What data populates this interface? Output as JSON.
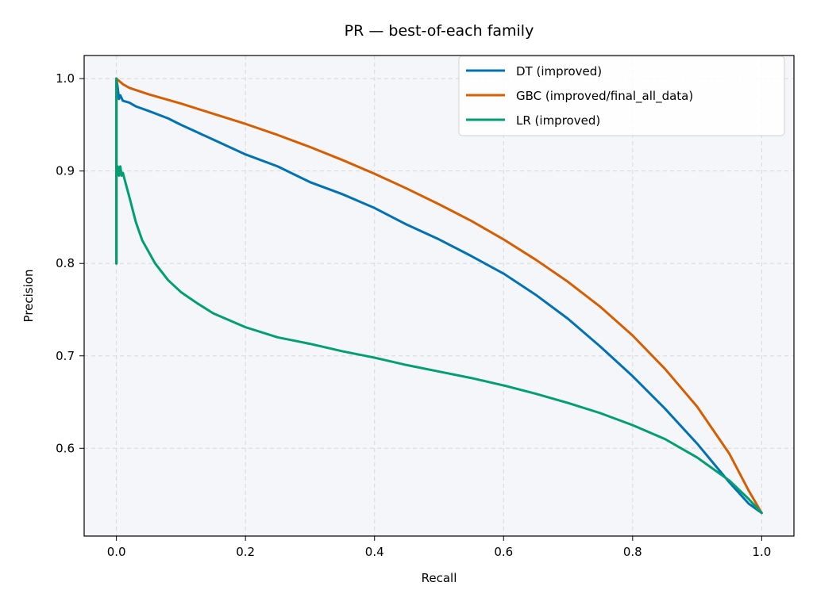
{
  "chart_data": {
    "type": "line",
    "title": "PR — best-of-each family",
    "xlabel": "Recall",
    "ylabel": "Precision",
    "xlim": [
      -0.05,
      1.05
    ],
    "ylim": [
      0.505,
      1.025
    ],
    "xticks": [
      0.0,
      0.2,
      0.4,
      0.6,
      0.8,
      1.0
    ],
    "xtick_labels": [
      "0.0",
      "0.2",
      "0.4",
      "0.6",
      "0.8",
      "1.0"
    ],
    "yticks": [
      0.6,
      0.7,
      0.8,
      0.9,
      1.0
    ],
    "ytick_labels": [
      "0.6",
      "0.7",
      "0.8",
      "0.9",
      "1.0"
    ],
    "grid": true,
    "legend_position": "top-right",
    "background": "#f5f6fa",
    "series": [
      {
        "name": "DT (improved)",
        "color": "#0072b2",
        "x": [
          0.0,
          0.0,
          0.0,
          0.002,
          0.004,
          0.006,
          0.01,
          0.02,
          0.03,
          0.05,
          0.08,
          0.1,
          0.15,
          0.2,
          0.25,
          0.3,
          0.35,
          0.4,
          0.45,
          0.5,
          0.55,
          0.6,
          0.65,
          0.7,
          0.75,
          0.8,
          0.85,
          0.9,
          0.95,
          0.98,
          1.0
        ],
        "y": [
          0.8,
          0.95,
          1.0,
          0.99,
          0.978,
          0.982,
          0.976,
          0.974,
          0.97,
          0.965,
          0.957,
          0.95,
          0.934,
          0.918,
          0.905,
          0.888,
          0.875,
          0.86,
          0.842,
          0.826,
          0.808,
          0.789,
          0.766,
          0.74,
          0.71,
          0.678,
          0.643,
          0.605,
          0.563,
          0.54,
          0.53
        ]
      },
      {
        "name": "GBC (improved/final_all_data)",
        "color": "#d55e00",
        "x": [
          0.0,
          0.0,
          0.0,
          0.005,
          0.01,
          0.02,
          0.05,
          0.1,
          0.15,
          0.2,
          0.25,
          0.3,
          0.35,
          0.4,
          0.45,
          0.5,
          0.55,
          0.6,
          0.65,
          0.7,
          0.75,
          0.8,
          0.85,
          0.9,
          0.95,
          0.98,
          1.0
        ],
        "y": [
          0.8,
          0.95,
          1.0,
          0.997,
          0.994,
          0.99,
          0.983,
          0.973,
          0.962,
          0.951,
          0.939,
          0.926,
          0.912,
          0.897,
          0.881,
          0.864,
          0.846,
          0.826,
          0.804,
          0.78,
          0.753,
          0.722,
          0.686,
          0.645,
          0.594,
          0.554,
          0.53
        ]
      },
      {
        "name": "LR (improved)",
        "color": "#009e73",
        "x": [
          0.0,
          0.0,
          0.0,
          0.0,
          0.002,
          0.004,
          0.006,
          0.008,
          0.01,
          0.02,
          0.03,
          0.04,
          0.06,
          0.08,
          0.1,
          0.125,
          0.15,
          0.2,
          0.25,
          0.3,
          0.35,
          0.4,
          0.45,
          0.5,
          0.55,
          0.6,
          0.65,
          0.7,
          0.75,
          0.8,
          0.85,
          0.9,
          0.95,
          0.98,
          1.0
        ],
        "y": [
          0.8,
          0.88,
          1.0,
          0.9,
          0.905,
          0.895,
          0.905,
          0.895,
          0.898,
          0.872,
          0.845,
          0.825,
          0.8,
          0.782,
          0.769,
          0.757,
          0.746,
          0.731,
          0.72,
          0.713,
          0.705,
          0.698,
          0.69,
          0.683,
          0.676,
          0.668,
          0.659,
          0.649,
          0.638,
          0.625,
          0.61,
          0.59,
          0.565,
          0.545,
          0.53
        ]
      }
    ]
  }
}
